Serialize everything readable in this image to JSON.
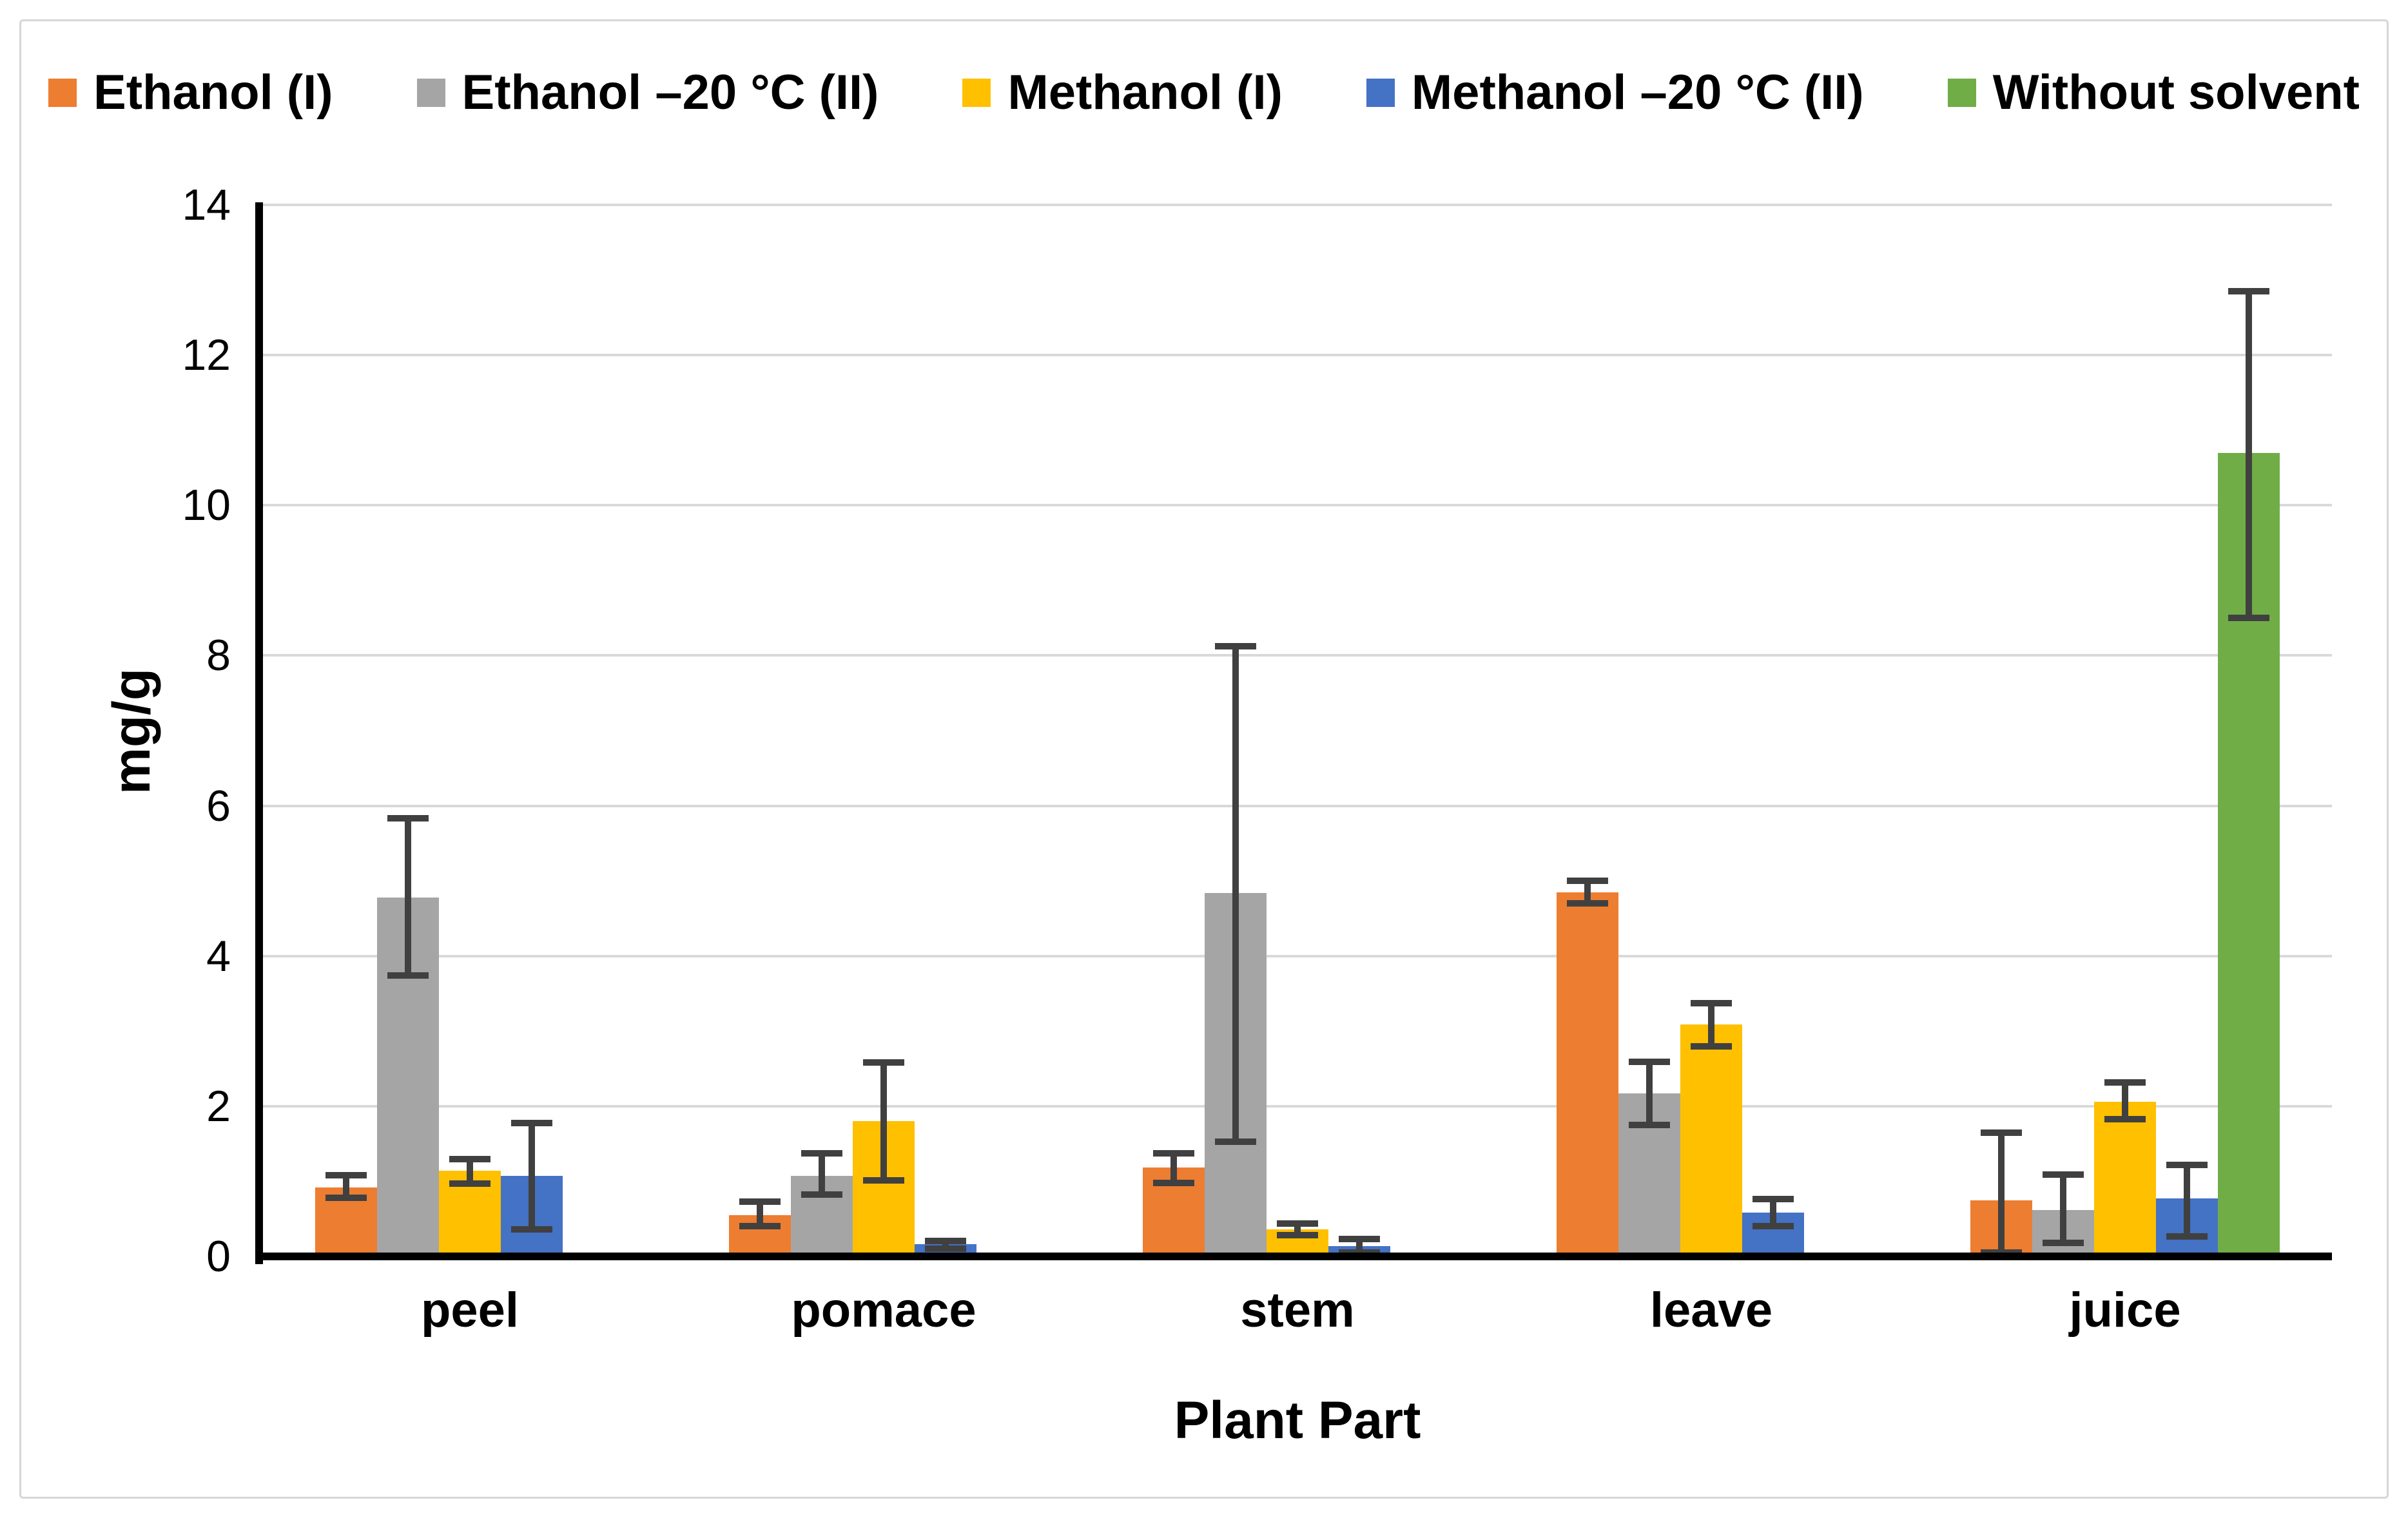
{
  "figure": {
    "frame_color": "#d6d6d6",
    "background": "#ffffff"
  },
  "chart_data": {
    "type": "bar",
    "title": "",
    "xlabel": "Plant Part",
    "ylabel": "mg/g",
    "ylim": [
      0,
      14
    ],
    "yticks": [
      0,
      2,
      4,
      6,
      8,
      10,
      12,
      14
    ],
    "grid": "horizontal",
    "gridline_color": "#d9d9d9",
    "axis_color": "#000000",
    "error_bar_color": "#404040",
    "legend_position": "top",
    "categories": [
      "peel",
      "pomace",
      "stem",
      "leave",
      "juice"
    ],
    "series": [
      {
        "name": "Ethanol (I)",
        "color": "#ED7D31",
        "values": [
          0.92,
          0.55,
          1.18,
          4.85,
          0.75
        ],
        "err_low": [
          0.14,
          0.15,
          0.2,
          0.15,
          0.7
        ],
        "err_high": [
          0.16,
          0.18,
          0.19,
          0.15,
          0.9
        ]
      },
      {
        "name": "Ethanol –20 °C (II)",
        "color": "#A5A5A5",
        "values": [
          4.78,
          1.07,
          4.84,
          2.17,
          0.62
        ],
        "err_low": [
          1.04,
          0.25,
          3.31,
          0.42,
          0.44
        ],
        "err_high": [
          1.05,
          0.3,
          3.28,
          0.42,
          0.47
        ]
      },
      {
        "name": "Methanol (I)",
        "color": "#FFC000",
        "values": [
          1.14,
          1.8,
          0.36,
          3.09,
          2.06
        ],
        "err_low": [
          0.17,
          0.79,
          0.08,
          0.29,
          0.23
        ],
        "err_high": [
          0.16,
          0.78,
          0.08,
          0.28,
          0.26
        ]
      },
      {
        "name": "Methanol –20 °C (II)",
        "color": "#4472C4",
        "values": [
          1.07,
          0.16,
          0.14,
          0.58,
          0.77
        ],
        "err_low": [
          0.71,
          0.06,
          0.09,
          0.18,
          0.5
        ],
        "err_high": [
          0.71,
          0.05,
          0.09,
          0.18,
          0.45
        ]
      },
      {
        "name": "Without solvent",
        "color": "#70AD47",
        "values": [
          null,
          null,
          null,
          null,
          10.7
        ],
        "err_low": [
          null,
          null,
          null,
          null,
          2.2
        ],
        "err_high": [
          null,
          null,
          null,
          null,
          2.15
        ]
      }
    ]
  }
}
